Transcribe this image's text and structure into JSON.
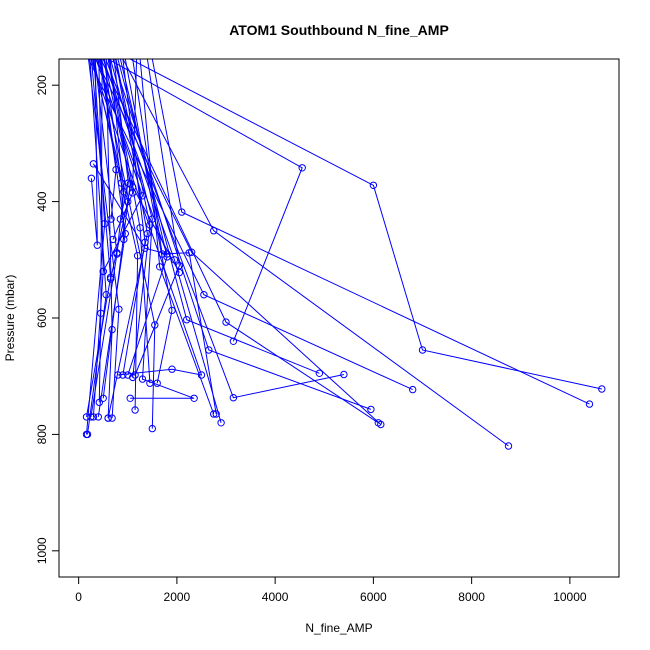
{
  "chart_data": {
    "type": "line",
    "title": "ATOM1 Southbound N_fine_AMP",
    "xlabel": "N_fine_AMP",
    "ylabel": "Pressure (mbar)",
    "xlim": [
      -400,
      11000
    ],
    "ylim": [
      1045,
      155
    ],
    "y_inverted": true,
    "x_ticks": [
      "0",
      "2000",
      "4000",
      "6000",
      "8000",
      "10000"
    ],
    "y_ticks": [
      "200",
      "400",
      "600",
      "800",
      "1000"
    ],
    "grid": false,
    "legend": "none",
    "colors": {
      "series": "#0000ff",
      "axis": "#000000"
    },
    "series": [
      {
        "values": [
          [
            600,
            155
          ],
          [
            4550,
            342
          ],
          [
            3150,
            640
          ]
        ]
      },
      {
        "values": [
          [
            1050,
            155
          ],
          [
            6000,
            372
          ],
          [
            7000,
            655
          ],
          [
            10650,
            722
          ]
        ]
      },
      {
        "values": [
          [
            1500,
            155
          ],
          [
            2100,
            418
          ],
          [
            10400,
            748
          ]
        ]
      },
      {
        "values": [
          [
            900,
            155
          ],
          [
            2750,
            450
          ],
          [
            8750,
            820
          ]
        ]
      },
      {
        "values": [
          [
            350,
            155
          ],
          [
            2300,
            487
          ],
          [
            6150,
            783
          ]
        ]
      },
      {
        "values": [
          [
            200,
            155
          ],
          [
            2550,
            560
          ],
          [
            6800,
            723
          ]
        ]
      },
      {
        "values": [
          [
            450,
            155
          ],
          [
            3000,
            607
          ],
          [
            6100,
            780
          ]
        ]
      },
      {
        "values": [
          [
            700,
            155
          ],
          [
            2650,
            655
          ],
          [
            5950,
            757
          ]
        ]
      },
      {
        "values": [
          [
            250,
            155
          ],
          [
            2500,
            698
          ],
          [
            1900,
            688
          ],
          [
            800,
            698
          ]
        ]
      },
      {
        "values": [
          [
            550,
            155
          ],
          [
            3150,
            737
          ],
          [
            5400,
            697
          ]
        ]
      },
      {
        "values": [
          [
            800,
            155
          ],
          [
            2200,
            603
          ],
          [
            4900,
            695
          ]
        ]
      },
      {
        "values": [
          [
            950,
            155
          ],
          [
            1900,
            587
          ],
          [
            1600,
            712
          ]
        ]
      },
      {
        "values": [
          [
            350,
            155
          ],
          [
            1800,
            490
          ],
          [
            1350,
            480
          ],
          [
            300,
            335
          ]
        ]
      },
      {
        "values": [
          [
            1100,
            155
          ],
          [
            1700,
            490
          ],
          [
            2250,
            488
          ],
          [
            2800,
            765
          ]
        ]
      },
      {
        "values": [
          [
            500,
            155
          ],
          [
            1950,
            500
          ],
          [
            2900,
            780
          ]
        ]
      },
      {
        "values": [
          [
            650,
            155
          ],
          [
            1500,
            430
          ],
          [
            1300,
            705
          ],
          [
            2350,
            738
          ],
          [
            1050,
            738
          ]
        ]
      },
      {
        "values": [
          [
            420,
            155
          ],
          [
            1550,
            612
          ],
          [
            1500,
            790
          ]
        ]
      },
      {
        "values": [
          [
            300,
            155
          ],
          [
            1200,
            493
          ],
          [
            1150,
            758
          ]
        ]
      },
      {
        "values": [
          [
            750,
            155
          ],
          [
            1400,
            455
          ],
          [
            600,
            772
          ]
        ]
      },
      {
        "values": [
          [
            280,
            155
          ],
          [
            1000,
            400
          ],
          [
            650,
            533
          ]
        ]
      },
      {
        "values": [
          [
            380,
            155
          ],
          [
            1300,
            390
          ],
          [
            500,
            520
          ]
        ]
      },
      {
        "values": [
          [
            520,
            155
          ],
          [
            1100,
            385
          ],
          [
            700,
            465
          ]
        ]
      },
      {
        "values": [
          [
            600,
            155
          ],
          [
            1050,
            370
          ],
          [
            500,
            738
          ]
        ]
      },
      {
        "values": [
          [
            460,
            155
          ],
          [
            950,
            455
          ],
          [
            400,
            770
          ]
        ]
      },
      {
        "values": [
          [
            330,
            155
          ],
          [
            780,
            490
          ],
          [
            250,
            770
          ]
        ]
      },
      {
        "values": [
          [
            260,
            155
          ],
          [
            650,
            530
          ],
          [
            160,
            770
          ]
        ]
      },
      {
        "values": [
          [
            230,
            155
          ],
          [
            560,
            560
          ],
          [
            180,
            800
          ]
        ]
      },
      {
        "values": [
          [
            310,
            155
          ],
          [
            530,
            438
          ],
          [
            160,
            800
          ]
        ]
      },
      {
        "values": [
          [
            410,
            155
          ],
          [
            500,
            520
          ],
          [
            300,
            770
          ]
        ]
      },
      {
        "values": [
          [
            480,
            155
          ],
          [
            450,
            592
          ],
          [
            420,
            745
          ]
        ]
      },
      {
        "values": [
          [
            560,
            155
          ],
          [
            680,
            620
          ],
          [
            600,
            772
          ]
        ]
      },
      {
        "values": [
          [
            200,
            155
          ],
          [
            820,
            585
          ],
          [
            680,
            772
          ]
        ]
      },
      {
        "values": [
          [
            900,
            155
          ],
          [
            1350,
            470
          ],
          [
            900,
            698
          ]
        ]
      },
      {
        "values": [
          [
            620,
            155
          ],
          [
            1250,
            445
          ],
          [
            1450,
            712
          ]
        ]
      },
      {
        "values": [
          [
            1400,
            155
          ],
          [
            2050,
            510
          ],
          [
            1150,
            698
          ]
        ]
      },
      {
        "values": [
          [
            1250,
            155
          ],
          [
            1650,
            512
          ],
          [
            2750,
            765
          ]
        ]
      },
      {
        "values": [
          [
            850,
            155
          ],
          [
            1800,
            495
          ],
          [
            1000,
            698
          ]
        ]
      },
      {
        "values": [
          [
            760,
            155
          ],
          [
            1450,
            440
          ],
          [
            1100,
            702
          ]
        ]
      },
      {
        "values": [
          [
            340,
            155
          ],
          [
            380,
            475
          ],
          [
            260,
            360
          ]
        ]
      },
      {
        "values": [
          [
            440,
            155
          ],
          [
            760,
            345
          ],
          [
            660,
            430
          ]
        ]
      },
      {
        "values": [
          [
            520,
            155
          ],
          [
            870,
            368
          ],
          [
            920,
            465
          ]
        ]
      },
      {
        "values": [
          [
            640,
            155
          ],
          [
            920,
            383
          ],
          [
            780,
            488
          ]
        ]
      },
      {
        "values": [
          [
            720,
            155
          ],
          [
            1010,
            368
          ],
          [
            850,
            430
          ]
        ]
      },
      {
        "values": [
          [
            1180,
            155
          ],
          [
            1100,
            375
          ],
          [
            2050,
            522
          ]
        ]
      }
    ]
  }
}
